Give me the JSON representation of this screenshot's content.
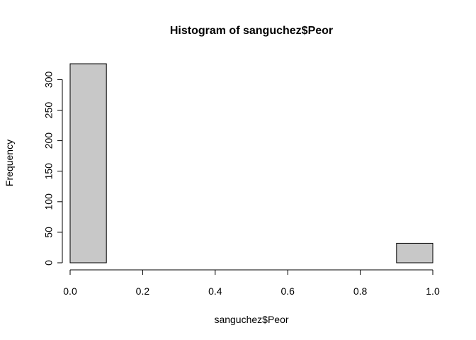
{
  "chart_data": {
    "type": "bar",
    "title": "Histogram of sanguchez$Peor",
    "xlabel": "sanguchez$Peor",
    "ylabel": "Frequency",
    "bins": [
      {
        "start": 0.0,
        "end": 0.1,
        "count": 326
      },
      {
        "start": 0.1,
        "end": 0.2,
        "count": 0
      },
      {
        "start": 0.2,
        "end": 0.3,
        "count": 0
      },
      {
        "start": 0.3,
        "end": 0.4,
        "count": 0
      },
      {
        "start": 0.4,
        "end": 0.5,
        "count": 0
      },
      {
        "start": 0.5,
        "end": 0.6,
        "count": 0
      },
      {
        "start": 0.6,
        "end": 0.7,
        "count": 0
      },
      {
        "start": 0.7,
        "end": 0.8,
        "count": 0
      },
      {
        "start": 0.8,
        "end": 0.9,
        "count": 0
      },
      {
        "start": 0.9,
        "end": 1.0,
        "count": 32
      }
    ],
    "xlim": [
      0,
      1
    ],
    "ylim": [
      0,
      326
    ],
    "xticks": [
      "0.0",
      "0.2",
      "0.4",
      "0.6",
      "0.8",
      "1.0"
    ],
    "xtick_values": [
      0,
      0.2,
      0.4,
      0.6,
      0.8,
      1.0
    ],
    "yticks": [
      "0",
      "50",
      "100",
      "150",
      "200",
      "250",
      "300"
    ],
    "ytick_values": [
      0,
      50,
      100,
      150,
      200,
      250,
      300
    ],
    "grid": false,
    "bar_color": "#c8c8c8"
  }
}
